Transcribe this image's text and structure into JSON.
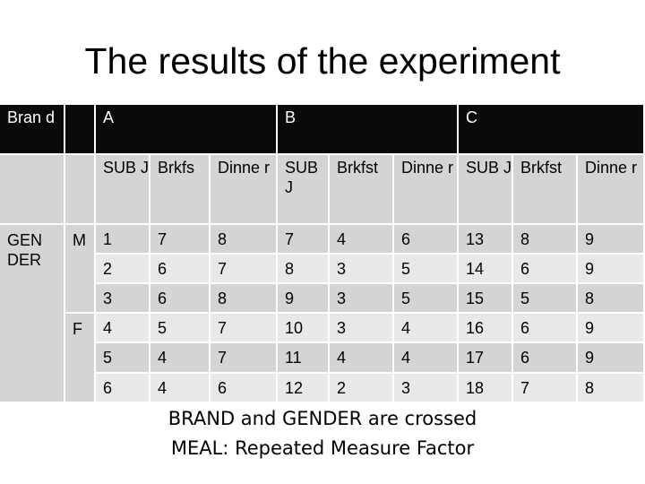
{
  "slide": {
    "title": "The results of the experiment",
    "footer_line1": "BRAND and GENDER are crossed",
    "footer_line2": "MEAL: Repeated Measure Factor"
  },
  "table": {
    "brand_header": "Bran d",
    "brands": [
      "A",
      "B",
      "C"
    ],
    "columns": [
      "SUB J",
      "Brkfs",
      "Dinne r",
      "SUB J",
      "Brkfst",
      "Dinne r",
      "SUB J",
      "Brkfst",
      "Dinne r"
    ],
    "gender_header": "GEN DER",
    "genders": [
      "M",
      "F"
    ],
    "rows": [
      [
        "1",
        "7",
        "8",
        "7",
        "4",
        "6",
        "13",
        "8",
        "9"
      ],
      [
        "2",
        "6",
        "7",
        "8",
        "3",
        "5",
        "14",
        "6",
        "9"
      ],
      [
        "3",
        "6",
        "8",
        "9",
        "3",
        "5",
        "15",
        "5",
        "8"
      ],
      [
        "4",
        "5",
        "7",
        "10",
        "3",
        "4",
        "16",
        "6",
        "9"
      ],
      [
        "5",
        "4",
        "7",
        "11",
        "4",
        "4",
        "17",
        "6",
        "9"
      ],
      [
        "6",
        "4",
        "6",
        "12",
        "2",
        "3",
        "18",
        "7",
        "8"
      ]
    ]
  }
}
